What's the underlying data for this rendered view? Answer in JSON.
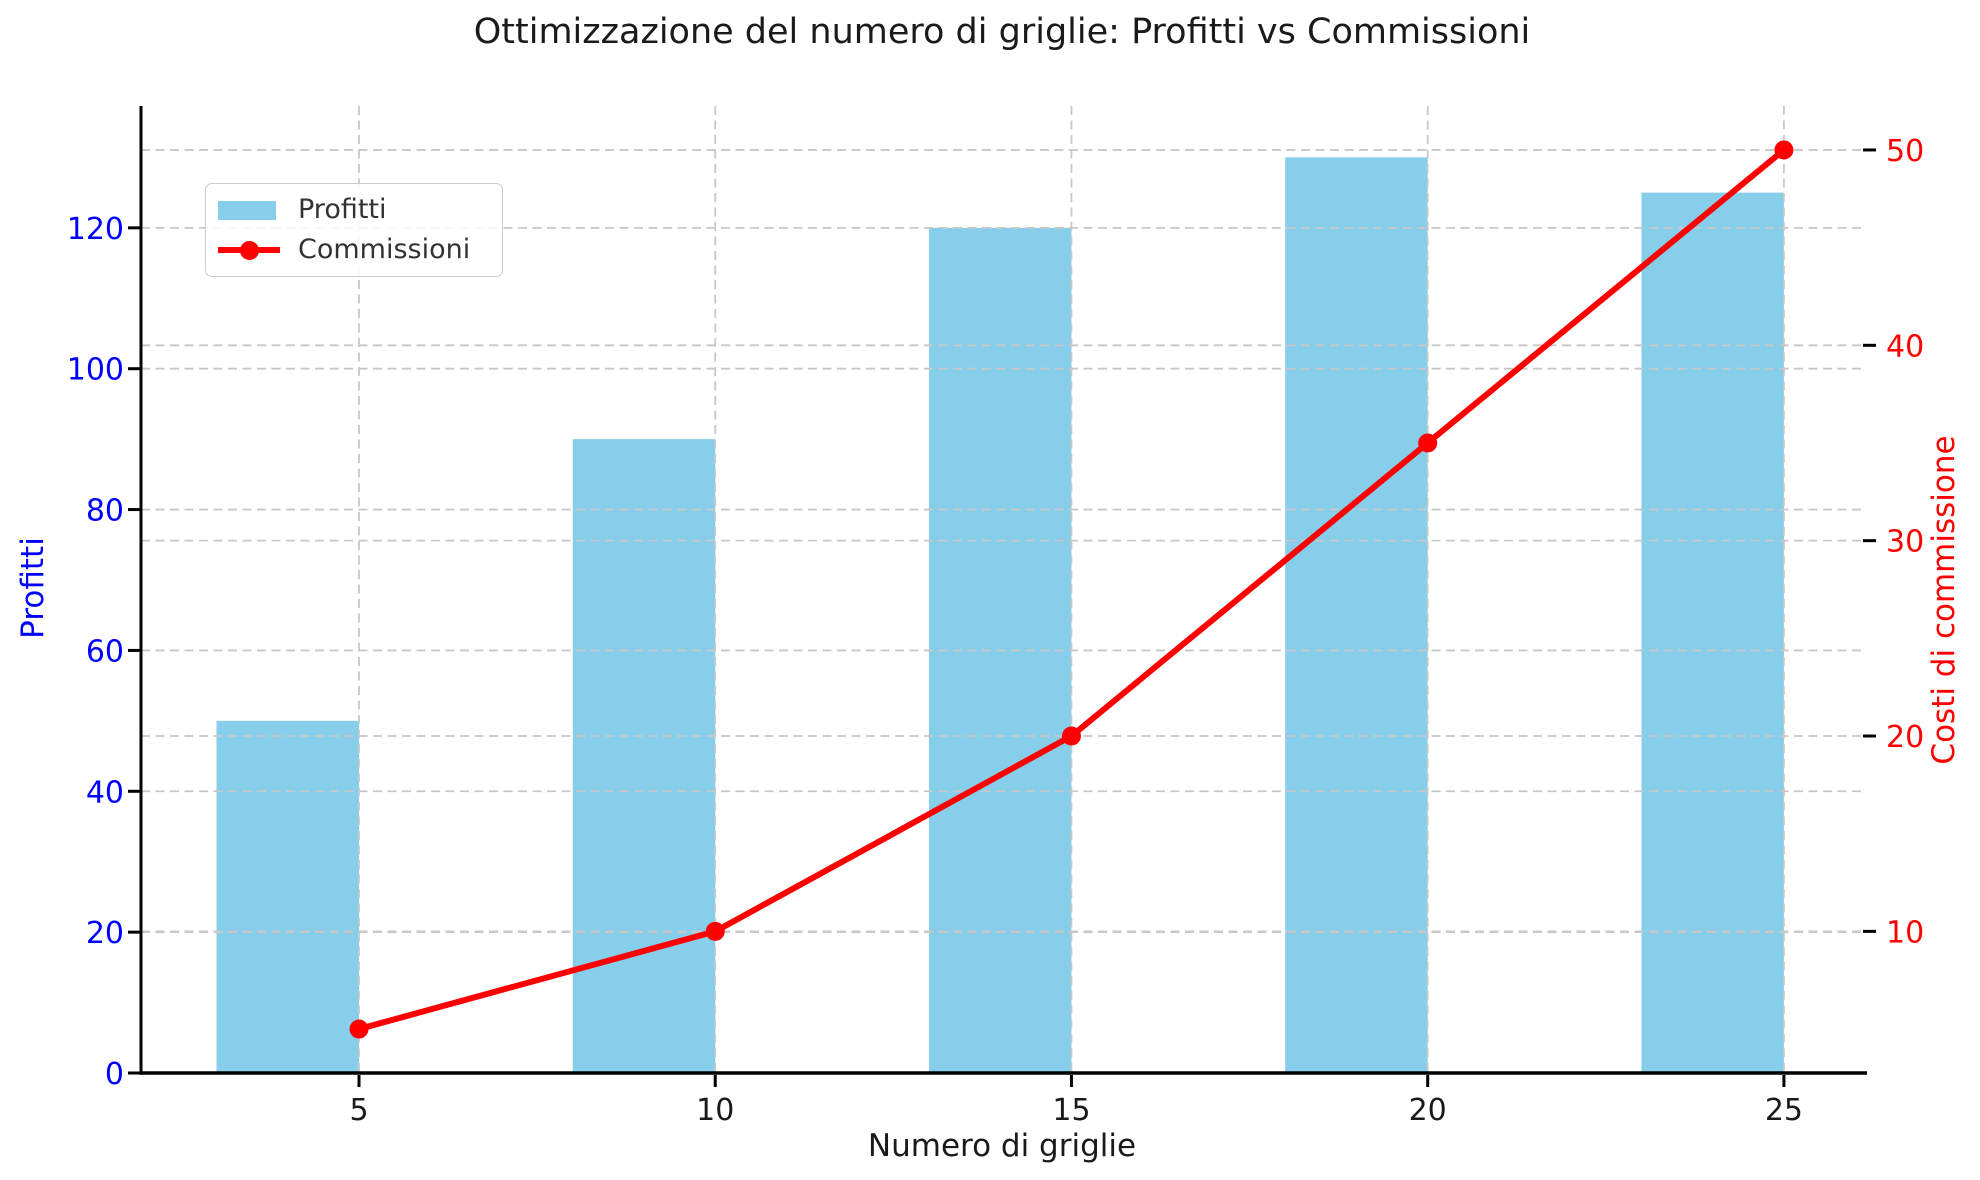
{
  "figure": {
    "background": "#ffffff"
  },
  "chart_data": {
    "type": "combo-bar-line-dual-axis",
    "title": "Ottimizzazione del numero di griglie: Profitti vs Commissioni",
    "xlabel": "Numero di griglie",
    "ylabel_left": "Profitti",
    "ylabel_right": "Costi di commissione",
    "x": [
      5,
      10,
      15,
      20,
      25
    ],
    "series": [
      {
        "name": "Profitti",
        "type": "bar",
        "axis": "left",
        "values": [
          50,
          90,
          120,
          130,
          125
        ],
        "color": "#87CEEB"
      },
      {
        "name": "Commissioni",
        "type": "line",
        "axis": "right",
        "values": [
          5,
          10,
          20,
          35,
          50
        ],
        "color": "#FF0000"
      }
    ],
    "xticks": [
      5,
      10,
      15,
      20,
      25
    ],
    "yticks_left": [
      0,
      20,
      40,
      60,
      80,
      100,
      120
    ],
    "yticks_right": [
      10,
      20,
      30,
      40,
      50
    ],
    "xlim": [
      1.94,
      26.11
    ],
    "ylim_left": [
      0,
      137.3
    ],
    "ylim_right": [
      2.75,
      52.25
    ],
    "bar_width_data_units": 2,
    "bar_alignment": "right-edge-at-x",
    "grid": true,
    "grid_style": "dashed",
    "legend_position": "upper-left",
    "colors": {
      "bar": "#87CEEB",
      "line": "#FF0000",
      "left_axis_text": "#0000FF",
      "right_axis_text": "#FF0000",
      "tick_text": "#1A1A1A",
      "title_text": "#1A1A1A",
      "grid": "#C8C8C8",
      "spine": "#000000"
    }
  }
}
